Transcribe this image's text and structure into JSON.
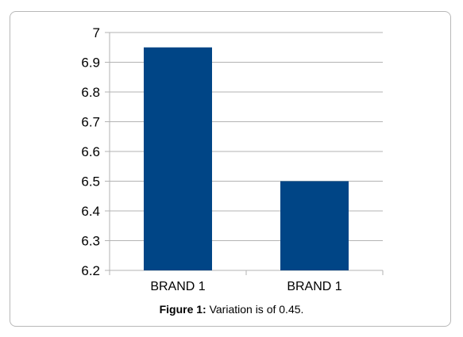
{
  "caption": {
    "label": "Figure 1:",
    "text": "Variation is of 0.45."
  },
  "chart_data": {
    "type": "bar",
    "categories": [
      "BRAND 1",
      "BRAND 1"
    ],
    "values": [
      6.95,
      6.5
    ],
    "ylim": [
      6.2,
      7
    ],
    "yticks": [
      "6.2",
      "6.3",
      "6.4",
      "6.5",
      "6.6",
      "6.7",
      "6.8",
      "6.9",
      "7"
    ],
    "grid": true,
    "legend": "none",
    "colors": {
      "bar": "#004586",
      "grid": "#b3b3b3",
      "axis": "#b3b3b3"
    }
  }
}
